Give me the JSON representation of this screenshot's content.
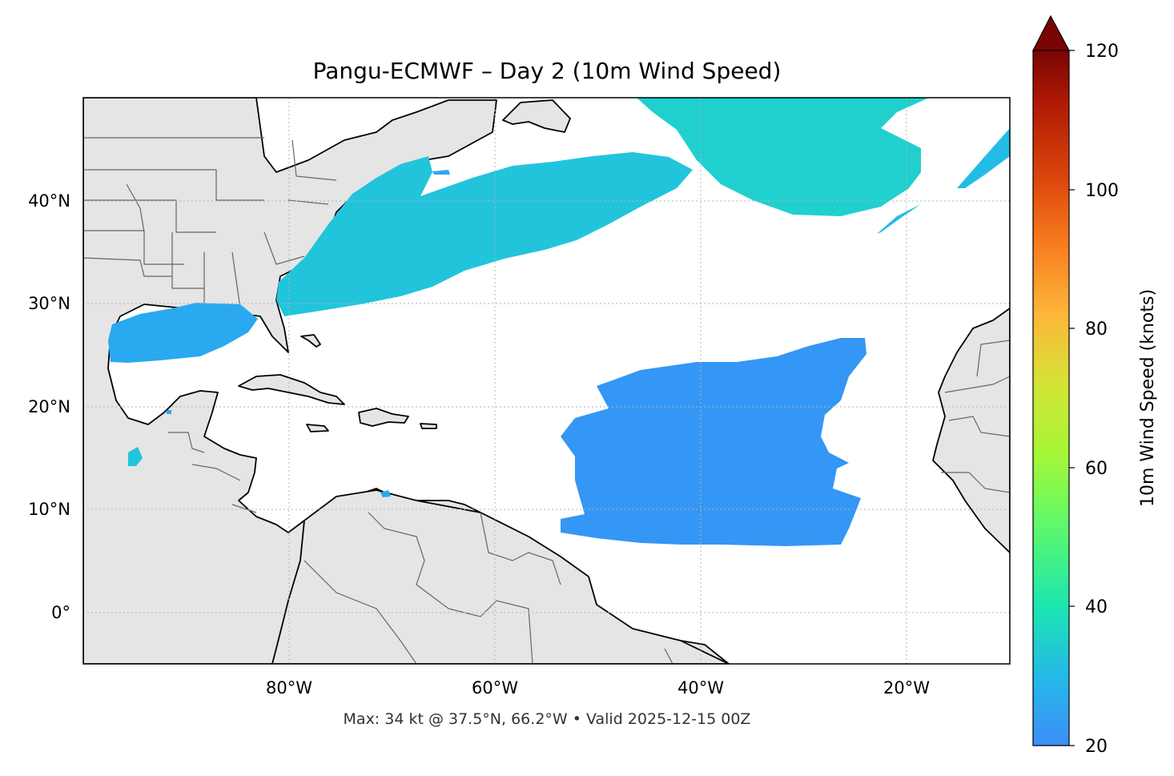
{
  "title": "Pangu-ECMWF – Day 2 (10m Wind Speed)",
  "footer": "Max: 34 kt @ 37.5°N, 66.2°W • Valid 2025-12-15 00Z",
  "map": {
    "lon_range": [
      -100,
      -10
    ],
    "lat_range": [
      -5,
      50
    ],
    "lon_ticks": [
      {
        "value": -80,
        "label": "80°W"
      },
      {
        "value": -60,
        "label": "60°W"
      },
      {
        "value": -40,
        "label": "40°W"
      },
      {
        "value": -20,
        "label": "20°W"
      }
    ],
    "lat_ticks": [
      {
        "value": 40,
        "label": "40°N"
      },
      {
        "value": 30,
        "label": "30°N"
      },
      {
        "value": 20,
        "label": "20°N"
      },
      {
        "value": 10,
        "label": "10°N"
      },
      {
        "value": 0,
        "label": "0°"
      }
    ],
    "gridlines": true,
    "land_color": "#e5e5e5",
    "ocean_color": "#ffffff"
  },
  "colorbar": {
    "label": "10m Wind Speed (knots)",
    "min": 20,
    "max": 120,
    "extend": "max",
    "ticks": [
      {
        "value": 20,
        "label": "20"
      },
      {
        "value": 40,
        "label": "40"
      },
      {
        "value": 60,
        "label": "60"
      },
      {
        "value": 80,
        "label": "80"
      },
      {
        "value": 100,
        "label": "100"
      },
      {
        "value": 120,
        "label": "120"
      }
    ],
    "colormap": "turbo"
  },
  "wind_regions": [
    {
      "name": "gulf-of-mexico",
      "speed_kt": 26
    },
    {
      "name": "us-east-coast-jet",
      "speed_kt": 30
    },
    {
      "name": "north-atlantic-northern",
      "speed_kt": 28
    },
    {
      "name": "northeast-atlantic-streak",
      "speed_kt": 25
    },
    {
      "name": "tropical-trade-winds",
      "speed_kt": 23
    },
    {
      "name": "gulf-of-honduras-patch",
      "speed_kt": 26
    }
  ],
  "max_wind": {
    "speed_kt": 34,
    "lat": 37.5,
    "lon": -66.2
  }
}
